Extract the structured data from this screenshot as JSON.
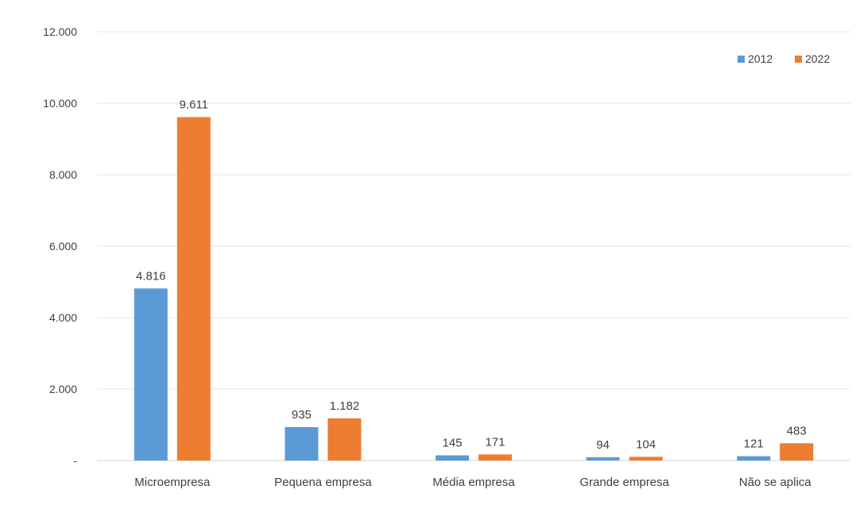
{
  "chart_data": {
    "type": "bar",
    "categories": [
      "Microempresa",
      "Pequena empresa",
      "Média empresa",
      "Grande empresa",
      "Não se aplica"
    ],
    "series": [
      {
        "name": "2012",
        "color": "#5b9bd5",
        "values": [
          4816,
          935,
          145,
          94,
          121
        ],
        "labels": [
          "4.816",
          "935",
          "145",
          "94",
          "121"
        ]
      },
      {
        "name": "2022",
        "color": "#ed7d31",
        "values": [
          9611,
          1182,
          171,
          104,
          483
        ],
        "labels": [
          "9.611",
          "1.182",
          "171",
          "104",
          "483"
        ]
      }
    ],
    "ylim": [
      0,
      12000
    ],
    "y_ticks": [
      0,
      2000,
      4000,
      6000,
      8000,
      10000,
      12000
    ],
    "y_tick_labels": [
      "-",
      "2.000",
      "4.000",
      "6.000",
      "8.000",
      "10.000",
      "12.000"
    ],
    "grid": true,
    "legend_position": "top-right",
    "title": "",
    "xlabel": "",
    "ylabel": ""
  }
}
